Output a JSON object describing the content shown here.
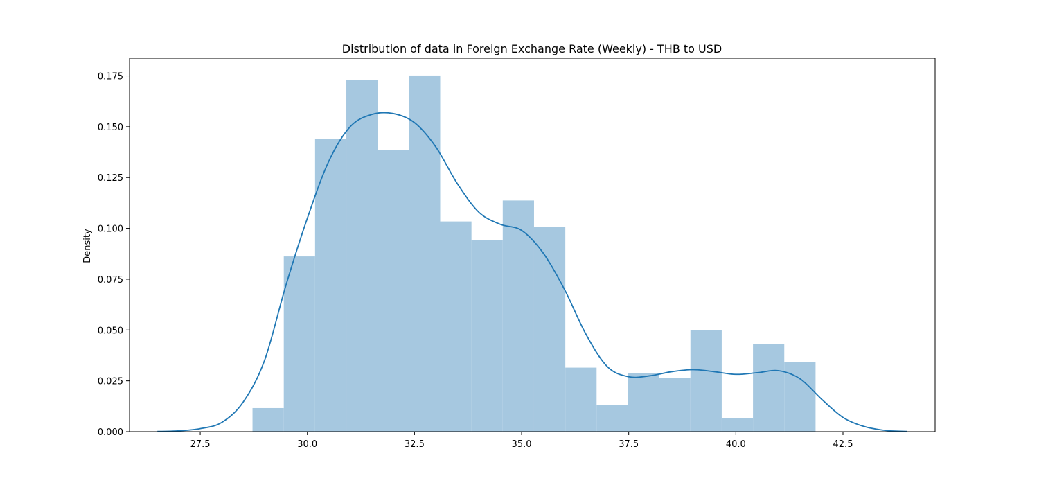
{
  "chart_data": {
    "type": "histogram",
    "title": "Distribution of data in Foreign Exchange Rate (Weekly) - THB to USD",
    "xlabel": "",
    "ylabel": "Density",
    "xlim": [
      25.85,
      44.65
    ],
    "ylim": [
      0,
      0.1837
    ],
    "xticks": [
      27.5,
      30.0,
      32.5,
      35.0,
      37.5,
      40.0,
      42.5
    ],
    "xtick_labels": [
      "27.5",
      "30.0",
      "32.5",
      "35.0",
      "37.5",
      "40.0",
      "42.5"
    ],
    "yticks": [
      0,
      0.025,
      0.05,
      0.075,
      0.1,
      0.125,
      0.15,
      0.175
    ],
    "ytick_labels": [
      "0.000",
      "0.025",
      "0.050",
      "0.075",
      "0.100",
      "0.125",
      "0.150",
      "0.175"
    ],
    "bins": {
      "edges": [
        28.72,
        29.45,
        30.18,
        30.91,
        31.64,
        32.37,
        33.1,
        33.83,
        34.56,
        35.29,
        36.02,
        36.75,
        37.48,
        38.21,
        38.94,
        39.67,
        40.4,
        41.13,
        41.86
      ],
      "heights": [
        0.0116,
        0.0862,
        0.1441,
        0.1729,
        0.1387,
        0.1752,
        0.1034,
        0.0944,
        0.1137,
        0.1008,
        0.0315,
        0.013,
        0.0287,
        0.0264,
        0.0499,
        0.0066,
        0.0431,
        0.0341
      ]
    },
    "kde": {
      "x": [
        26.5,
        27.0,
        27.5,
        28.0,
        28.5,
        29.0,
        29.5,
        30.0,
        30.5,
        31.0,
        31.5,
        32.0,
        32.5,
        33.0,
        33.5,
        34.0,
        34.5,
        35.0,
        35.5,
        36.0,
        36.5,
        37.0,
        37.5,
        38.0,
        38.5,
        39.0,
        39.5,
        40.0,
        40.5,
        41.0,
        41.5,
        42.0,
        42.5,
        43.0,
        43.5,
        44.0
      ],
      "y": [
        0.0001,
        0.0004,
        0.0015,
        0.0045,
        0.0145,
        0.035,
        0.072,
        0.105,
        0.133,
        0.15,
        0.156,
        0.1565,
        0.152,
        0.14,
        0.122,
        0.108,
        0.102,
        0.099,
        0.088,
        0.07,
        0.048,
        0.032,
        0.027,
        0.0275,
        0.0295,
        0.0305,
        0.0295,
        0.0282,
        0.029,
        0.03,
        0.026,
        0.016,
        0.007,
        0.0025,
        0.0006,
        0.0001
      ]
    },
    "bar_color": "#a6c8e0",
    "line_color": "#1f77b4",
    "grid": false,
    "legend": "none"
  }
}
